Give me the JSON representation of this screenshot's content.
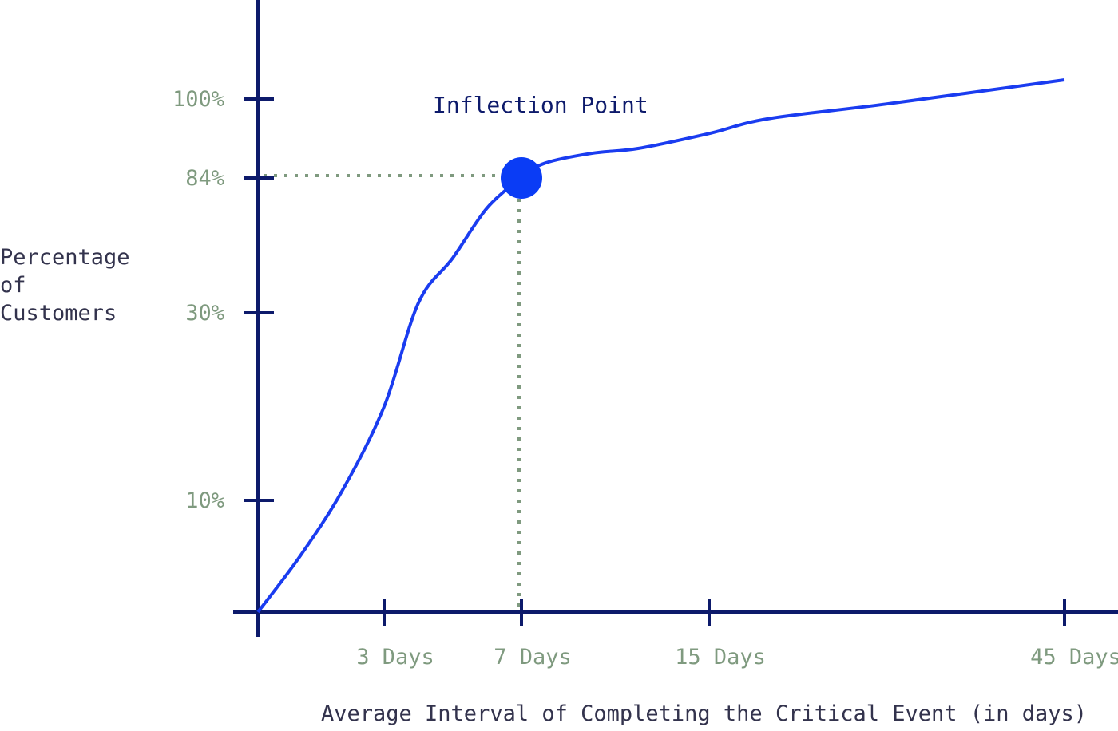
{
  "chart_data": {
    "type": "line",
    "title": "",
    "xlabel": "Average Interval of Completing the Critical Event (in days)",
    "ylabel_lines": [
      "Percentage",
      "of",
      "Customers"
    ],
    "x_ticks": [
      {
        "value": 3,
        "label": "3 Days"
      },
      {
        "value": 7,
        "label": "7 Days"
      },
      {
        "value": 15,
        "label": "15 Days"
      },
      {
        "value": 45,
        "label": "45 Days"
      }
    ],
    "y_ticks": [
      {
        "value": 10,
        "label": "10%"
      },
      {
        "value": 30,
        "label": "30%"
      },
      {
        "value": 84,
        "label": "84%"
      },
      {
        "value": 100,
        "label": "100%"
      }
    ],
    "series": [
      {
        "x": [
          0,
          1,
          2,
          3,
          4,
          5,
          6,
          7,
          8,
          10,
          12,
          15,
          20,
          30,
          45
        ],
        "y": [
          0,
          5,
          11,
          20,
          34,
          52,
          72,
          84,
          87,
          89,
          90,
          93,
          96,
          99,
          103
        ]
      }
    ],
    "highlight_point": {
      "x": 7,
      "y": 84
    },
    "annotation": "Inflection Point",
    "grid": false,
    "colors": {
      "line": "#1a3cf0",
      "axis": "#0d1a6b",
      "guide": "#7f9a7f",
      "point": "#0a3cf5"
    }
  }
}
